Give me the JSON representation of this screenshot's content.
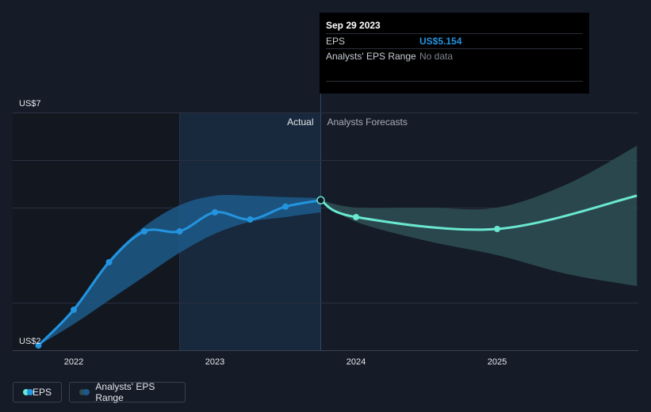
{
  "tooltip": {
    "date": "Sep 29 2023",
    "rows": [
      {
        "label": "EPS",
        "value": "US$5.154"
      },
      {
        "label": "Analysts' EPS Range",
        "value": "No data"
      }
    ]
  },
  "legend": {
    "eps_label": "EPS",
    "range_label": "Analysts' EPS Range"
  },
  "colors": {
    "background": "#151b27",
    "eps_line": "#2394df",
    "forecast_line": "#6ae8d0",
    "range_band": "#1d5a8a",
    "forecast_band": "#2c4d52"
  },
  "chart_data": {
    "type": "line",
    "ylabel_top": "US$7",
    "ylabel_bottom": "US$2",
    "ylim": [
      2,
      7
    ],
    "x_ticks": [
      {
        "label": "2022",
        "t": 2022.0
      },
      {
        "label": "2023",
        "t": 2023.0
      },
      {
        "label": "2024",
        "t": 2024.0
      },
      {
        "label": "2025",
        "t": 2025.0
      }
    ],
    "section_labels": {
      "actual": "Actual",
      "forecast": "Analysts Forecasts"
    },
    "divider_t": 2023.75,
    "shade_start_t": 2022.75,
    "series": [
      {
        "name": "EPS",
        "kind": "actual",
        "points": [
          {
            "t": 2021.75,
            "v": 2.1
          },
          {
            "t": 2022.0,
            "v": 2.85
          },
          {
            "t": 2022.25,
            "v": 3.85
          },
          {
            "t": 2022.5,
            "v": 4.5
          },
          {
            "t": 2022.75,
            "v": 4.5
          },
          {
            "t": 2023.0,
            "v": 4.9
          },
          {
            "t": 2023.25,
            "v": 4.75
          },
          {
            "t": 2023.5,
            "v": 5.02
          },
          {
            "t": 2023.75,
            "v": 5.154
          }
        ]
      },
      {
        "name": "EPS forecast",
        "kind": "forecast",
        "points": [
          {
            "t": 2023.75,
            "v": 5.154
          },
          {
            "t": 2024.0,
            "v": 4.8
          },
          {
            "t": 2025.0,
            "v": 4.55
          },
          {
            "t": 2025.99,
            "v": 5.25
          }
        ]
      }
    ],
    "actual_range": {
      "upper": [
        {
          "t": 2021.75,
          "v": 2.1
        },
        {
          "t": 2022.0,
          "v": 2.9
        },
        {
          "t": 2022.25,
          "v": 3.9
        },
        {
          "t": 2022.5,
          "v": 4.6
        },
        {
          "t": 2022.75,
          "v": 5.05
        },
        {
          "t": 2023.0,
          "v": 5.25
        },
        {
          "t": 2023.25,
          "v": 5.25
        },
        {
          "t": 2023.5,
          "v": 5.22
        },
        {
          "t": 2023.75,
          "v": 5.2
        }
      ],
      "lower": [
        {
          "t": 2021.75,
          "v": 2.1
        },
        {
          "t": 2022.0,
          "v": 2.55
        },
        {
          "t": 2022.25,
          "v": 3.05
        },
        {
          "t": 2022.5,
          "v": 3.55
        },
        {
          "t": 2022.75,
          "v": 4.05
        },
        {
          "t": 2023.0,
          "v": 4.45
        },
        {
          "t": 2023.25,
          "v": 4.7
        },
        {
          "t": 2023.5,
          "v": 4.8
        },
        {
          "t": 2023.75,
          "v": 4.9
        }
      ]
    },
    "forecast_range": {
      "upper": [
        {
          "t": 2023.75,
          "v": 5.154
        },
        {
          "t": 2024.0,
          "v": 5.0
        },
        {
          "t": 2024.5,
          "v": 5.0
        },
        {
          "t": 2025.0,
          "v": 5.0
        },
        {
          "t": 2025.5,
          "v": 5.5
        },
        {
          "t": 2025.99,
          "v": 6.3
        }
      ],
      "lower": [
        {
          "t": 2023.75,
          "v": 5.154
        },
        {
          "t": 2024.0,
          "v": 4.7
        },
        {
          "t": 2024.5,
          "v": 4.3
        },
        {
          "t": 2025.0,
          "v": 4.0
        },
        {
          "t": 2025.5,
          "v": 3.6
        },
        {
          "t": 2025.99,
          "v": 3.35
        }
      ]
    }
  }
}
